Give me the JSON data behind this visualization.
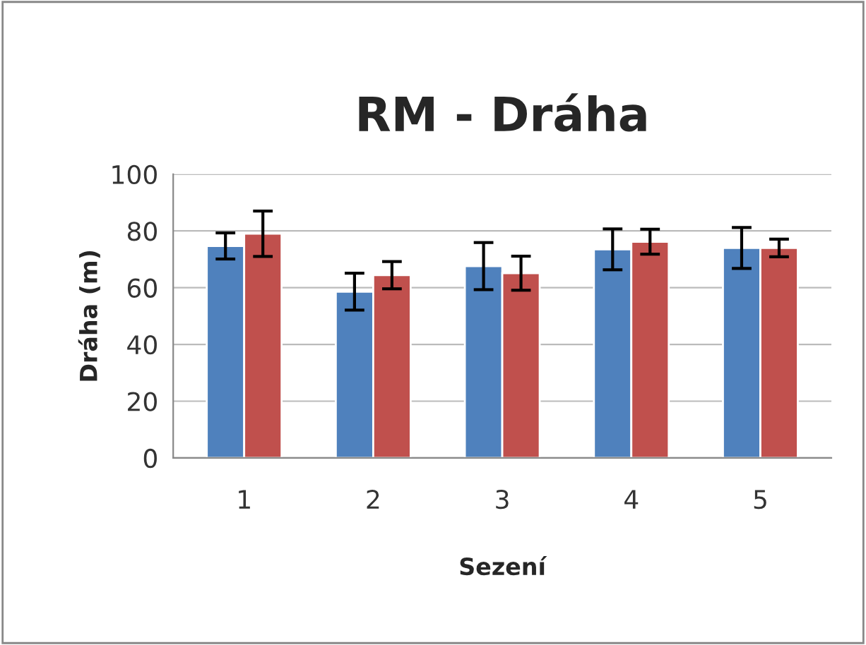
{
  "chart_data": {
    "type": "bar",
    "title": "RM - Dráha",
    "xlabel": "Sezení",
    "ylabel": "Dráha (m)",
    "categories": [
      "1",
      "2",
      "3",
      "4",
      "5"
    ],
    "series": [
      {
        "color": "#4f81bd",
        "values": [
          74.7,
          58.6,
          67.6,
          73.5,
          74
        ],
        "errors": [
          4.6,
          6.5,
          8.3,
          7.2,
          7.2
        ]
      },
      {
        "color": "#c0504d",
        "values": [
          79,
          64.4,
          65.1,
          76.2,
          74
        ],
        "errors": [
          8,
          4.8,
          6,
          4.4,
          3.1
        ]
      }
    ],
    "ylim": [
      0,
      100
    ],
    "yticks": [
      0,
      20,
      40,
      60,
      80,
      100
    ],
    "grid": "y"
  }
}
